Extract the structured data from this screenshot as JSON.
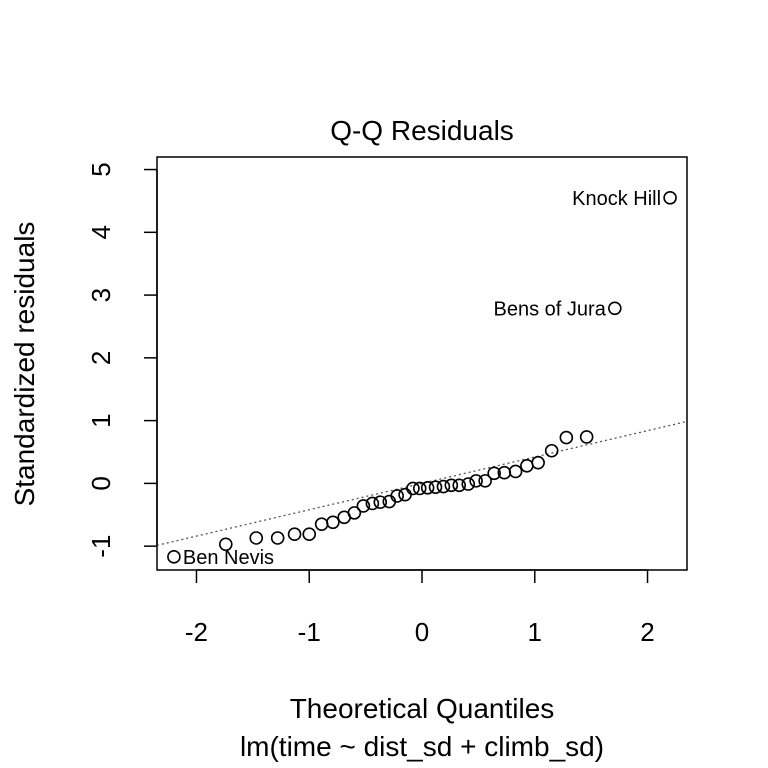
{
  "chart_data": {
    "type": "scatter",
    "title": "Q-Q Residuals",
    "xlabel": "Theoretical Quantiles",
    "sublabel": "lm(time ~ dist_sd + climb_sd)",
    "ylabel": "Standardized residuals",
    "xlim": [
      -2.35,
      2.35
    ],
    "ylim": [
      -1.38,
      5.2
    ],
    "xticks": [
      -2,
      -1,
      0,
      1,
      2
    ],
    "xtick_labels": [
      "-2",
      "-1",
      "0",
      "1",
      "2"
    ],
    "yticks": [
      -1,
      0,
      1,
      2,
      3,
      4,
      5
    ],
    "ytick_labels": [
      "-1",
      "0",
      "1",
      "2",
      "3",
      "4",
      "5"
    ],
    "grid": false,
    "points": [
      {
        "x": -2.2,
        "y": -1.17
      },
      {
        "x": -1.74,
        "y": -0.97
      },
      {
        "x": -1.47,
        "y": -0.87
      },
      {
        "x": -1.28,
        "y": -0.87
      },
      {
        "x": -1.13,
        "y": -0.81
      },
      {
        "x": -1.0,
        "y": -0.81
      },
      {
        "x": -0.89,
        "y": -0.65
      },
      {
        "x": -0.79,
        "y": -0.62
      },
      {
        "x": -0.69,
        "y": -0.54
      },
      {
        "x": -0.6,
        "y": -0.47
      },
      {
        "x": -0.52,
        "y": -0.36
      },
      {
        "x": -0.44,
        "y": -0.32
      },
      {
        "x": -0.37,
        "y": -0.3
      },
      {
        "x": -0.29,
        "y": -0.29
      },
      {
        "x": -0.22,
        "y": -0.2
      },
      {
        "x": -0.15,
        "y": -0.18
      },
      {
        "x": -0.08,
        "y": -0.08
      },
      {
        "x": -0.02,
        "y": -0.08
      },
      {
        "x": 0.05,
        "y": -0.07
      },
      {
        "x": 0.12,
        "y": -0.06
      },
      {
        "x": 0.19,
        "y": -0.05
      },
      {
        "x": 0.26,
        "y": -0.03
      },
      {
        "x": 0.33,
        "y": -0.03
      },
      {
        "x": 0.41,
        "y": -0.01
      },
      {
        "x": 0.48,
        "y": 0.04
      },
      {
        "x": 0.56,
        "y": 0.04
      },
      {
        "x": 0.64,
        "y": 0.16
      },
      {
        "x": 0.73,
        "y": 0.17
      },
      {
        "x": 0.83,
        "y": 0.19
      },
      {
        "x": 0.93,
        "y": 0.28
      },
      {
        "x": 1.03,
        "y": 0.33
      },
      {
        "x": 1.15,
        "y": 0.52
      },
      {
        "x": 1.28,
        "y": 0.73
      },
      {
        "x": 1.46,
        "y": 0.74
      },
      {
        "x": 1.71,
        "y": 2.79,
        "label": "Bens of Jura"
      },
      {
        "x": 2.2,
        "y": 4.55,
        "label": "Knock Hill"
      }
    ],
    "point_labels": [
      {
        "text": "Ben Nevis",
        "x": -2.2,
        "y": -1.17,
        "side": "right"
      },
      {
        "text": "Bens of Jura",
        "x": 1.71,
        "y": 2.79,
        "side": "left"
      },
      {
        "text": "Knock Hill",
        "x": 2.2,
        "y": 4.55,
        "side": "left"
      }
    ],
    "reference_line": {
      "intercept": 0.0,
      "slope": 0.42,
      "style": "dotted",
      "color": "#555555"
    }
  }
}
